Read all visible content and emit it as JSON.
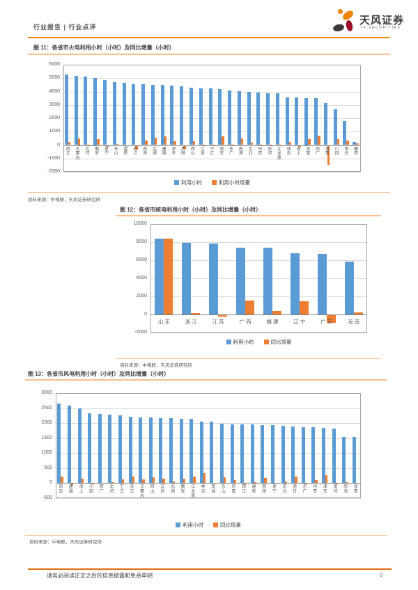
{
  "header": {
    "breadcrumb": "行业报告 | 行业点评",
    "brand_name": "天风证券",
    "brand_sub": "TF SECURITIES"
  },
  "footer": {
    "disclaimer": "请务必阅读正文之后的信息披露和免责申明",
    "page_number": "9"
  },
  "colors": {
    "bar_blue": "#5B9BD5",
    "bar_orange": "#ED7D31",
    "accent_orange": "#F08300",
    "rule_light_orange": "#FAC090"
  },
  "chart_data": [
    {
      "type": "bar",
      "title": "图 11：各省市火电利用小时（小时）及同比增量（小时）",
      "source": "资料来源：中电联，天风证券研究所",
      "ylim": [
        -2000,
        6000
      ],
      "ytick": 1000,
      "grid": true,
      "legend_position": "bottom",
      "categories": [
        "江西",
        "内蒙古",
        "河北",
        "安徽",
        "宁夏",
        "山东",
        "新疆",
        "江苏",
        "海南",
        "湖北",
        "福建",
        "天津",
        "陕西",
        "山西",
        "浙江",
        "辽宁",
        "甘肃",
        "广东",
        "湖南",
        "北京",
        "贵州",
        "河南",
        "黑龙江",
        "吉林",
        "上海",
        "重庆",
        "广西",
        "青海",
        "四川",
        "云南",
        "西藏"
      ],
      "series": [
        {
          "name": "利用小时",
          "color": "#5B9BD5",
          "values": [
            5280,
            5150,
            5100,
            5000,
            4870,
            4700,
            4640,
            4560,
            4530,
            4510,
            4480,
            4440,
            4400,
            4310,
            4230,
            4220,
            4200,
            4080,
            4030,
            3960,
            3930,
            3860,
            3850,
            3560,
            3550,
            3500,
            3490,
            3130,
            2690,
            1780,
            220
          ]
        },
        {
          "name": "利用小时增量",
          "color": "#ED7D31",
          "values": [
            230,
            500,
            40,
            420,
            -120,
            60,
            -70,
            -330,
            350,
            570,
            640,
            310,
            -270,
            300,
            30,
            20,
            640,
            30,
            480,
            160,
            40,
            20,
            15,
            210,
            -150,
            430,
            700,
            -1500,
            450,
            320,
            150
          ]
        }
      ]
    },
    {
      "type": "bar",
      "title": "图 12：各省市核电利用小时（小时）及同比增量（小时）",
      "source": "资料来源：中电联，天风证券研究所",
      "ylim": [
        -2000,
        10000
      ],
      "ytick": 2000,
      "grid": true,
      "legend_position": "bottom",
      "categories": [
        "山东",
        "浙江",
        "江苏",
        "广西",
        "福建",
        "辽宁",
        "广东",
        "海南"
      ],
      "series": [
        {
          "name": "利用小时",
          "color": "#5B9BD5",
          "values": [
            8350,
            7920,
            7850,
            7420,
            7400,
            6740,
            6670,
            5880
          ]
        },
        {
          "name": "同比增量",
          "color": "#ED7D31",
          "values": [
            8350,
            150,
            -200,
            1550,
            420,
            1450,
            -900,
            200
          ]
        }
      ]
    },
    {
      "type": "bar",
      "title": "图 13：各省市风电利用小时（小时）及同比增量（小时）",
      "source": "资料来源：中电联，天风证券研究所",
      "ylim": [
        -500,
        3000
      ],
      "ytick": 500,
      "grid": true,
      "legend_position": "bottom",
      "categories": [
        "云南",
        "福建",
        "上海",
        "四川",
        "广西",
        "河北",
        "辽宁",
        "江苏",
        "内蒙古",
        "山西",
        "浙江",
        "湖北",
        "安徽",
        "黑龙江",
        "吉林",
        "湖南",
        "山东",
        "重庆",
        "江西",
        "新疆",
        "陕西",
        "宁夏",
        "北京",
        "甘肃",
        "广东",
        "贵州",
        "天津",
        "河南",
        "海南",
        "青海"
      ],
      "series": [
        {
          "name": "利用小时",
          "color": "#5B9BD5",
          "values": [
            2650,
            2580,
            2500,
            2330,
            2300,
            2280,
            2260,
            2220,
            2200,
            2180,
            2170,
            2160,
            2150,
            2140,
            2060,
            2050,
            1970,
            1960,
            1955,
            1950,
            1945,
            1940,
            1905,
            1890,
            1870,
            1860,
            1840,
            1820,
            1540,
            1530
          ]
        },
        {
          "name": "同比增量",
          "color": "#ED7D31",
          "values": [
            210,
            -60,
            150,
            -30,
            20,
            25,
            120,
            220,
            130,
            200,
            160,
            50,
            140,
            230,
            330,
            -20,
            190,
            110,
            -40,
            40,
            170,
            -20,
            60,
            220,
            -30,
            100,
            260,
            -40,
            30,
            -20
          ]
        }
      ]
    }
  ]
}
